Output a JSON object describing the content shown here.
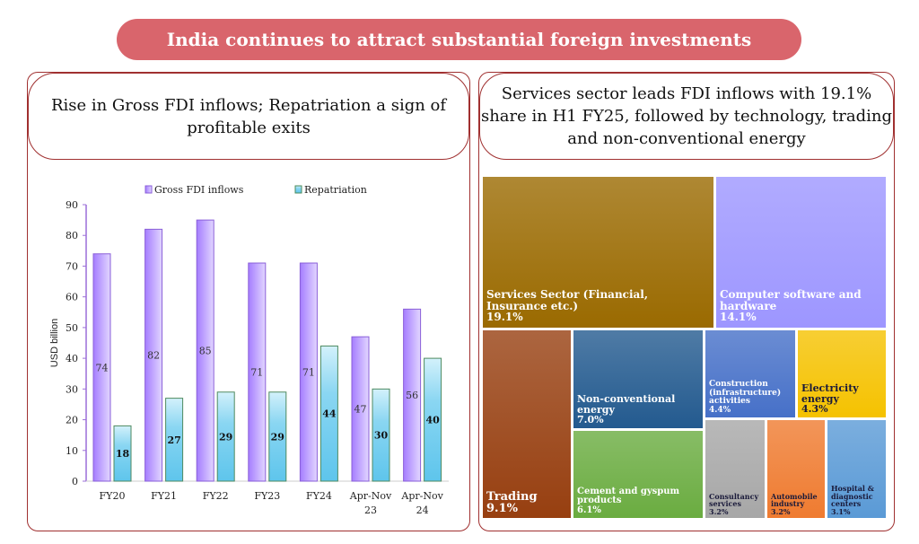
{
  "banner": "India continues to attract substantial foreign investments",
  "left": {
    "title": "Rise in Gross FDI inflows; Repatriation a sign of profitable exits"
  },
  "right": {
    "title": "Services sector leads FDI inflows with 19.1% share in H1 FY25, followed by technology, trading and non-conventional energy"
  },
  "chart_data": {
    "type": "bar",
    "ylabel": "USD billion",
    "xlabel": "",
    "ylim": [
      0,
      90
    ],
    "yticks": [
      "0",
      "10",
      "20",
      "30",
      "40",
      "50",
      "60",
      "70",
      "80",
      "90"
    ],
    "categories": [
      [
        "FY20"
      ],
      [
        "FY21"
      ],
      [
        "FY22"
      ],
      [
        "FY23"
      ],
      [
        "FY24"
      ],
      [
        "Apr-Nov",
        "23"
      ],
      [
        "Apr-Nov",
        "24"
      ]
    ],
    "legend_position": "top",
    "series": [
      {
        "name": "Gross FDI inflows",
        "values": [
          74,
          82,
          85,
          71,
          71,
          47,
          56
        ],
        "color": "#b99cff"
      },
      {
        "name": "Repatriation",
        "values": [
          18,
          27,
          29,
          29,
          44,
          30,
          40
        ],
        "color": "#7fd3f0"
      }
    ]
  },
  "treemap": {
    "type": "treemap",
    "items": [
      {
        "name": "Services Sector  (Financial, Insurance etc.)",
        "value": "19.1%",
        "color": "#9a6a00"
      },
      {
        "name": "Computer software and hardware",
        "value": "14.1%",
        "color": "#9d96ff"
      },
      {
        "name": "Trading",
        "value": "9.1%",
        "color": "#973f10"
      },
      {
        "name": "Non-conventional energy",
        "value": "7.0%",
        "color": "#235a8f"
      },
      {
        "name": "Cement and gyspum products",
        "value": "6.1%",
        "color": "#6aac40"
      },
      {
        "name": "Construction (infrastructure) activities",
        "value": "4.4%",
        "color": "#4670c8"
      },
      {
        "name": "Electricity energy",
        "value": "4.3%",
        "color": "#f5c200"
      },
      {
        "name": "Consultancy services",
        "value": "3.2%",
        "color": "#a7a7a7"
      },
      {
        "name": "Automobile industry",
        "value": "3.2%",
        "color": "#ef7b30"
      },
      {
        "name": "Hospital & diagnostic centers",
        "value": "3.1%",
        "color": "#5a9ad6"
      }
    ]
  }
}
